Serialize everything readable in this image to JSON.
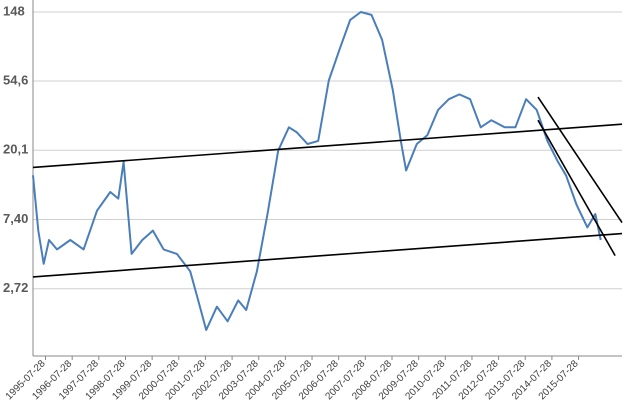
{
  "chart_data": {
    "type": "line",
    "log_scale_y": true,
    "grid": true,
    "xlim": [
      1995.1,
      2017.2
    ],
    "ylim": [
      1.03,
      176
    ],
    "yticks": [
      {
        "value": 2.72,
        "label": "2,72"
      },
      {
        "value": 7.4,
        "label": "7,40"
      },
      {
        "value": 20.1,
        "label": "20,1"
      },
      {
        "value": 54.6,
        "label": "54,6"
      },
      148
    ],
    "xticks": [
      {
        "value": 1995.57,
        "label": "1995-07-28"
      },
      {
        "value": 1996.57,
        "label": "1996-07-28"
      },
      {
        "value": 1997.57,
        "label": "1997-07-28"
      },
      {
        "value": 1998.57,
        "label": "1998-07-28"
      },
      {
        "value": 1999.57,
        "label": "1999-07-28"
      },
      {
        "value": 2000.57,
        "label": "2000-07-28"
      },
      {
        "value": 2001.57,
        "label": "2001-07-28"
      },
      {
        "value": 2002.57,
        "label": "2002-07-28"
      },
      {
        "value": 2003.57,
        "label": "2003-07-28"
      },
      {
        "value": 2004.57,
        "label": "2004-07-28"
      },
      {
        "value": 2005.57,
        "label": "2005-07-28"
      },
      {
        "value": 2006.57,
        "label": "2006-07-28"
      },
      {
        "value": 2007.57,
        "label": "2007-07-28"
      },
      {
        "value": 2008.57,
        "label": "2008-07-28"
      },
      {
        "value": 2009.57,
        "label": "2009-07-28"
      },
      {
        "value": 2010.57,
        "label": "2010-07-28"
      },
      {
        "value": 2011.57,
        "label": "2011-07-28"
      },
      {
        "value": 2012.57,
        "label": "2012-07-28"
      },
      {
        "value": 2013.57,
        "label": "2013-07-28"
      },
      {
        "value": 2014.57,
        "label": "2014-07-28"
      },
      {
        "value": 2015.57,
        "label": "2015-07-28"
      }
    ],
    "series": [
      {
        "color": "#4a7ebb",
        "width": 2,
        "x": [
          1995.1,
          1995.3,
          1995.5,
          1995.7,
          1996.0,
          1996.5,
          1997.0,
          1997.5,
          1998.0,
          1998.3,
          1998.5,
          1998.8,
          1999.2,
          1999.6,
          2000.0,
          2000.5,
          2001.0,
          2001.3,
          2001.6,
          2002.0,
          2002.4,
          2002.8,
          2003.1,
          2003.5,
          2003.9,
          2004.3,
          2004.7,
          2005.0,
          2005.4,
          2005.8,
          2006.2,
          2006.6,
          2007.0,
          2007.4,
          2007.8,
          2008.2,
          2008.6,
          2008.9,
          2009.1,
          2009.5,
          2009.9,
          2010.3,
          2010.7,
          2011.1,
          2011.5,
          2011.9,
          2012.3,
          2012.8,
          2013.2,
          2013.6,
          2014.0,
          2014.4,
          2014.8,
          2015.1,
          2015.5,
          2015.9,
          2016.2,
          2016.4
        ],
        "values": [
          14,
          6.3,
          3.9,
          5.5,
          4.8,
          5.5,
          4.8,
          8.4,
          11,
          10,
          17,
          4.5,
          5.5,
          6.3,
          4.8,
          4.5,
          3.5,
          2.3,
          1.5,
          2.1,
          1.7,
          2.3,
          2.0,
          3.5,
          8.0,
          20,
          28,
          26,
          22,
          23,
          55,
          86,
          132,
          148,
          142,
          99,
          48,
          23,
          15,
          22,
          25,
          36,
          42,
          45,
          42,
          28,
          31,
          28,
          28,
          42,
          36,
          23,
          17,
          14,
          9.1,
          6.6,
          8.0,
          5.5
        ]
      },
      {
        "color": "#000000",
        "width": 1.6,
        "x": [
          1995.1,
          2017.2
        ],
        "values": [
          15.7,
          29.3
        ]
      },
      {
        "color": "#000000",
        "width": 1.6,
        "x": [
          1995.1,
          2017.2
        ],
        "values": [
          3.23,
          6.03
        ]
      },
      {
        "color": "#000000",
        "width": 1.6,
        "x": [
          2014.05,
          2017.2
        ],
        "values": [
          43.3,
          7.07
        ]
      },
      {
        "color": "#000000",
        "width": 1.6,
        "x": [
          2014.05,
          2016.94
        ],
        "values": [
          31,
          4.39
        ]
      }
    ]
  }
}
